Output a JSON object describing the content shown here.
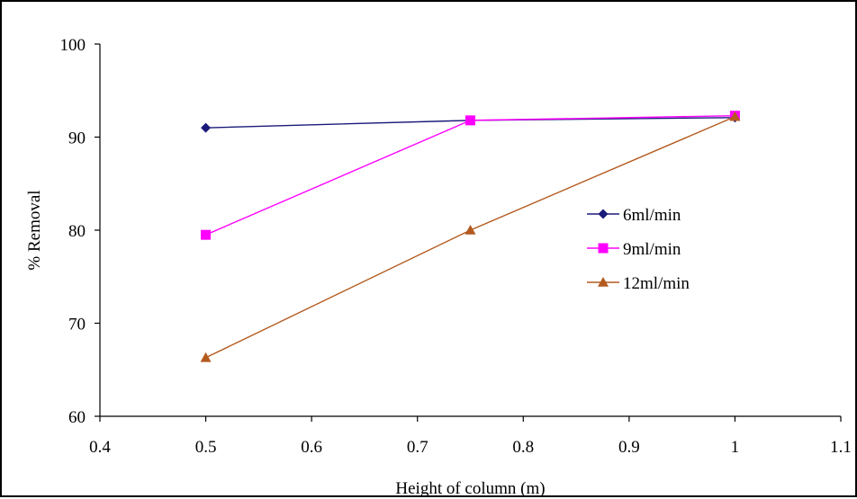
{
  "chart_data": {
    "type": "line",
    "title": "",
    "xlabel": "Height of column (m)",
    "ylabel": "% Removal",
    "xlim": [
      0.4,
      1.1
    ],
    "ylim": [
      60,
      100
    ],
    "x_ticks": [
      0.4,
      0.5,
      0.6,
      0.7,
      0.8,
      0.9,
      1.0,
      1.1
    ],
    "x_tick_labels": [
      "0.4",
      "0.5",
      "0.6",
      "0.7",
      "0.8",
      "0.9",
      "1",
      "1.1"
    ],
    "y_ticks": [
      60,
      70,
      80,
      90,
      100
    ],
    "y_tick_labels": [
      "60",
      "70",
      "80",
      "90",
      "100"
    ],
    "grid": false,
    "legend_position": "right",
    "series": [
      {
        "name": "6ml/min",
        "color": "#1a1a7a",
        "marker": "diamond",
        "x": [
          0.5,
          0.75,
          1.0
        ],
        "y": [
          91.0,
          91.8,
          92.1
        ]
      },
      {
        "name": "9ml/min",
        "color": "#ff00ff",
        "marker": "square",
        "x": [
          0.5,
          0.75,
          1.0
        ],
        "y": [
          79.5,
          91.8,
          92.3
        ]
      },
      {
        "name": "12ml/min",
        "color": "#b35a1f",
        "marker": "triangle",
        "x": [
          0.5,
          0.75,
          1.0
        ],
        "y": [
          66.3,
          80.0,
          92.2
        ]
      }
    ]
  }
}
